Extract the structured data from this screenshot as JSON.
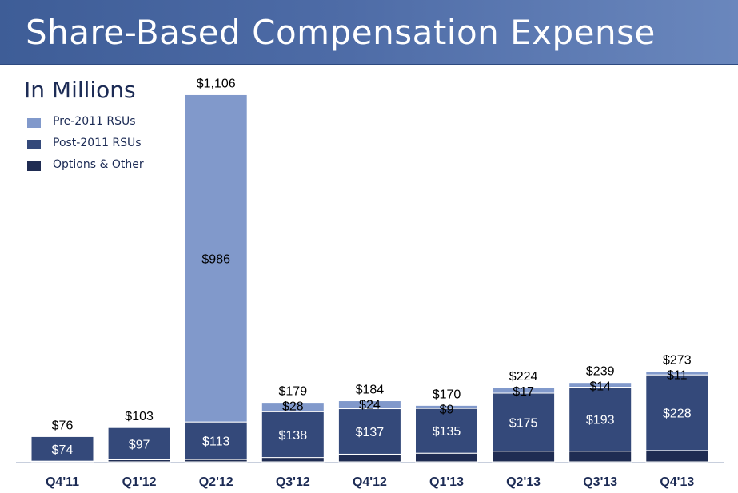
{
  "title": "Share-Based Compensation Expense",
  "chart_data": {
    "type": "bar",
    "stacked": true,
    "title": "Share-Based Compensation Expense",
    "unit_label": "In Millions",
    "categories": [
      "Q4'11",
      "Q1'12",
      "Q2'12",
      "Q3'12",
      "Q4'12",
      "Q1'13",
      "Q2'13",
      "Q3'13",
      "Q4'13"
    ],
    "series": [
      {
        "name": "Options & Other",
        "color": "#1f2c52",
        "values": [
          2,
          6,
          7,
          13,
          23,
          26,
          32,
          32,
          34
        ]
      },
      {
        "name": "Post-2011 RSUs",
        "color": "#34497a",
        "values": [
          74,
          97,
          113,
          138,
          137,
          135,
          175,
          193,
          228
        ]
      },
      {
        "name": "Pre-2011 RSUs",
        "color": "#8199cb",
        "values": [
          0,
          0,
          986,
          28,
          24,
          9,
          17,
          14,
          11
        ]
      }
    ],
    "segment_labels": {
      "Post-2011 RSUs": [
        "$74",
        "$97",
        "$113",
        "$138",
        "$137",
        "$135",
        "$175",
        "$193",
        "$228"
      ],
      "Pre-2011 RSUs": [
        "",
        "",
        "$986",
        "$28",
        "$24",
        "$9",
        "$17",
        "$14",
        "$11"
      ]
    },
    "totals": [
      76,
      103,
      1106,
      179,
      184,
      170,
      224,
      239,
      273
    ],
    "total_labels": [
      "$76",
      "$103",
      "$1,106",
      "$179",
      "$184",
      "$170",
      "$224",
      "$239",
      "$273"
    ],
    "legend_position": "top-left",
    "grid": false
  }
}
